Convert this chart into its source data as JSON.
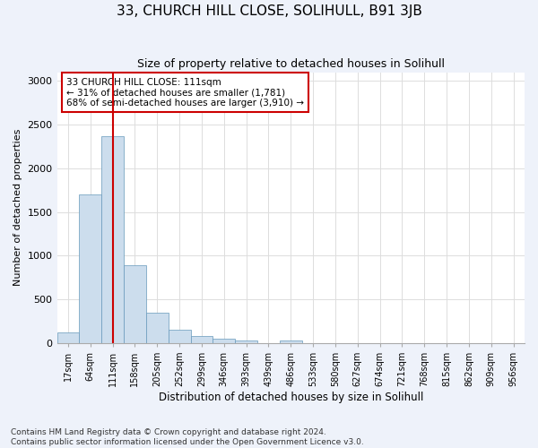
{
  "title1": "33, CHURCH HILL CLOSE, SOLIHULL, B91 3JB",
  "title2": "Size of property relative to detached houses in Solihull",
  "xlabel": "Distribution of detached houses by size in Solihull",
  "ylabel": "Number of detached properties",
  "categories": [
    "17sqm",
    "64sqm",
    "111sqm",
    "158sqm",
    "205sqm",
    "252sqm",
    "299sqm",
    "346sqm",
    "393sqm",
    "439sqm",
    "486sqm",
    "533sqm",
    "580sqm",
    "627sqm",
    "674sqm",
    "721sqm",
    "768sqm",
    "815sqm",
    "862sqm",
    "909sqm",
    "956sqm"
  ],
  "values": [
    120,
    1700,
    2370,
    890,
    350,
    155,
    80,
    55,
    35,
    0,
    35,
    0,
    0,
    0,
    0,
    0,
    0,
    0,
    0,
    0,
    0
  ],
  "bar_color": "#ccdded",
  "bar_edge_color": "#6699bb",
  "highlight_bar_index": 2,
  "highlight_line_color": "#cc0000",
  "annotation_text": "33 CHURCH HILL CLOSE: 111sqm\n← 31% of detached houses are smaller (1,781)\n68% of semi-detached houses are larger (3,910) →",
  "annotation_box_color": "#cc0000",
  "ylim": [
    0,
    3100
  ],
  "yticks": [
    0,
    500,
    1000,
    1500,
    2000,
    2500,
    3000
  ],
  "footer": "Contains HM Land Registry data © Crown copyright and database right 2024.\nContains public sector information licensed under the Open Government Licence v3.0.",
  "background_color": "#eef2fa",
  "plot_background_color": "#ffffff",
  "grid_color": "#dddddd",
  "title1_fontsize": 11,
  "title2_fontsize": 9
}
